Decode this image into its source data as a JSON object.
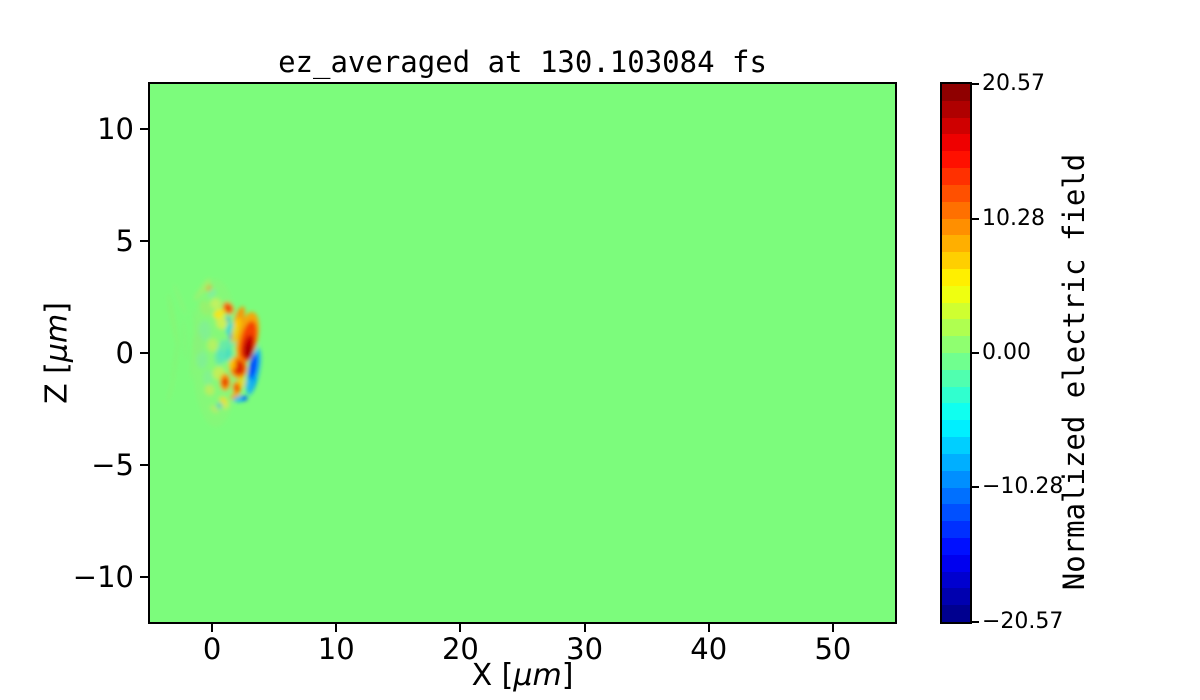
{
  "figure": {
    "background": "#ffffff"
  },
  "chart_data": {
    "type": "heatmap",
    "title": "ez_averaged at 130.103084 fs",
    "xlabel": {
      "pre": "X [",
      "italic": "μm",
      "post": "]"
    },
    "ylabel": {
      "pre": "Z [",
      "italic": "μm",
      "post": "]"
    },
    "xlim": [
      -5,
      55
    ],
    "ylim": [
      -12,
      12
    ],
    "x_ticks": [
      {
        "v": 0,
        "label": "0"
      },
      {
        "v": 10,
        "label": "10"
      },
      {
        "v": 20,
        "label": "20"
      },
      {
        "v": 30,
        "label": "30"
      },
      {
        "v": 40,
        "label": "40"
      },
      {
        "v": 50,
        "label": "50"
      }
    ],
    "y_ticks": [
      {
        "v": 10,
        "label": "10"
      },
      {
        "v": 5,
        "label": "5"
      },
      {
        "v": 0,
        "label": "0"
      },
      {
        "v": -5,
        "label": "−5"
      },
      {
        "v": -10,
        "label": "−10"
      }
    ],
    "grid": false,
    "background_value": 0.0,
    "background_color": "#7cfc7c",
    "colorbar": {
      "label": "Normalized electric field",
      "colormap": "jet",
      "n_bands": 32,
      "vmin": -20.57,
      "vmax": 20.57,
      "ticks": [
        {
          "v": 20.57,
          "label": "20.57"
        },
        {
          "v": 10.28,
          "label": "10.28"
        },
        {
          "v": 0.0,
          "label": "0.00"
        },
        {
          "v": -10.28,
          "label": "−10.28"
        },
        {
          "v": -20.57,
          "label": "−20.57"
        }
      ]
    },
    "features_note": "localized field structure near x≈0–4 μm, z≈−2.5–3 μm; format per feature: [x_um, z_um, rx_um, ry_um, rot_deg, color, opacity]",
    "features": [
      [
        0.3,
        0.0,
        1.9,
        3.3,
        0,
        "#97ef72",
        0.32
      ],
      [
        -0.6,
        1.0,
        0.5,
        0.45,
        0,
        "#7deba8",
        0.5
      ],
      [
        -0.8,
        -0.3,
        0.45,
        0.4,
        0,
        "#7cecaa",
        0.5
      ],
      [
        -0.35,
        -1.1,
        0.4,
        0.35,
        0,
        "#80eda6",
        0.45
      ],
      [
        -1.05,
        0.4,
        0.4,
        0.5,
        0,
        "#8bf07e",
        0.5
      ],
      [
        -0.5,
        2.0,
        0.45,
        0.35,
        -30,
        "#a8ee66",
        0.5
      ],
      [
        0.8,
        1.35,
        0.5,
        0.3,
        -20,
        "#d7f04e",
        0.85
      ],
      [
        0.05,
        0.35,
        0.45,
        0.3,
        0,
        "#c6ee58",
        0.7
      ],
      [
        0.55,
        -0.9,
        0.5,
        0.3,
        15,
        "#cfee50",
        0.8
      ],
      [
        -0.2,
        -1.65,
        0.4,
        0.25,
        -15,
        "#cdeb55",
        0.7
      ],
      [
        0.3,
        2.2,
        0.45,
        0.25,
        -40,
        "#d2ef58",
        0.75
      ],
      [
        1.0,
        -2.3,
        0.4,
        0.2,
        20,
        "#dfe84e",
        0.7
      ],
      [
        -0.55,
        3.0,
        0.7,
        0.14,
        -55,
        "#b4ef62",
        0.6
      ],
      [
        -1.1,
        2.6,
        0.55,
        0.12,
        -55,
        "#b0ee68",
        0.5
      ],
      [
        0.0,
        2.65,
        0.4,
        0.14,
        -50,
        "#7ce9c0",
        0.5
      ],
      [
        1.0,
        0.1,
        0.55,
        0.5,
        0,
        "#4fe0cc",
        0.55
      ],
      [
        0.6,
        -0.2,
        0.4,
        0.35,
        0,
        "#45ddd6",
        0.5
      ],
      [
        1.5,
        1.05,
        0.4,
        0.3,
        0,
        "#17d2e4",
        0.8
      ],
      [
        1.6,
        0.55,
        0.3,
        0.25,
        0,
        "#28d8de",
        0.6
      ],
      [
        2.7,
        -0.15,
        0.35,
        0.25,
        0,
        "#14c8ea",
        0.8
      ],
      [
        1.35,
        -0.05,
        0.3,
        0.3,
        0,
        "#2ad6d8",
        0.5
      ],
      [
        1.6,
        0.72,
        0.22,
        0.18,
        0,
        "#1e5aff",
        0.8
      ],
      [
        1.3,
        1.5,
        0.2,
        0.15,
        0,
        "#2f9cf0",
        0.6
      ],
      [
        -3.15,
        1.5,
        0.14,
        1.15,
        -10,
        "#93ef6d",
        0.55
      ],
      [
        -2.95,
        -0.3,
        0.12,
        0.95,
        8,
        "#90ee70",
        0.5
      ],
      [
        -3.3,
        -1.6,
        0.1,
        0.65,
        14,
        "#95ef72",
        0.45
      ],
      [
        -2.6,
        2.4,
        0.12,
        0.75,
        -22,
        "#98f075",
        0.45
      ],
      [
        -2.2,
        0.6,
        0.12,
        0.9,
        -4,
        "#8eee78",
        0.4
      ],
      [
        -1.55,
        -0.2,
        0.13,
        1.0,
        5,
        "#92ef74",
        0.45
      ],
      [
        -1.3,
        1.2,
        0.12,
        0.8,
        -8,
        "#90ee76",
        0.4
      ],
      [
        -0.25,
        2.9,
        0.3,
        0.12,
        -50,
        "#f0a23c",
        0.65
      ],
      [
        1.3,
        2.0,
        0.42,
        0.3,
        -35,
        "#ff8c1e",
        0.95
      ],
      [
        1.3,
        2.0,
        0.24,
        0.17,
        -35,
        "#e63205",
        1
      ],
      [
        0.55,
        1.75,
        0.5,
        0.2,
        -25,
        "#ffe414",
        0.9
      ],
      [
        2.2,
        1.6,
        0.35,
        0.5,
        20,
        "#ff9000",
        0.9
      ],
      [
        1.9,
        1.0,
        0.3,
        0.6,
        15,
        "#ffd700",
        0.8
      ],
      [
        2.85,
        0.7,
        0.85,
        1.15,
        12,
        "#ff9d00",
        0.92
      ],
      [
        2.9,
        0.5,
        0.62,
        0.95,
        12,
        "#f43b00",
        0.95
      ],
      [
        2.92,
        0.25,
        0.42,
        0.55,
        10,
        "#c40000",
        1
      ],
      [
        2.98,
        0.1,
        0.28,
        0.3,
        0,
        "#a30000",
        1
      ],
      [
        3.6,
        -0.1,
        0.2,
        0.45,
        10,
        "#30c8f0",
        0.5
      ],
      [
        2.1,
        -0.65,
        0.72,
        0.5,
        -10,
        "#ff9000",
        0.92
      ],
      [
        2.15,
        -0.65,
        0.48,
        0.34,
        -10,
        "#df2600",
        1
      ],
      [
        1.65,
        -0.5,
        0.3,
        0.25,
        0,
        "#ffc800",
        0.85
      ],
      [
        3.35,
        -0.85,
        0.45,
        1.05,
        12,
        "#18b4f0",
        0.9
      ],
      [
        3.32,
        -0.62,
        0.3,
        0.6,
        10,
        "#0046ff",
        0.95
      ],
      [
        3.28,
        -1.35,
        0.25,
        0.4,
        15,
        "#00a0f5",
        0.8
      ],
      [
        1.05,
        -1.3,
        0.42,
        0.38,
        0,
        "#ff9000",
        0.95
      ],
      [
        1.05,
        -1.3,
        0.24,
        0.2,
        0,
        "#e63c00",
        1
      ],
      [
        2.0,
        -1.55,
        0.36,
        0.3,
        0,
        "#ff9600",
        0.95
      ],
      [
        2.0,
        -1.55,
        0.2,
        0.16,
        0,
        "#eb4600",
        1
      ],
      [
        2.4,
        -1.3,
        0.3,
        0.25,
        0,
        "#ffd000",
        0.7
      ],
      [
        2.95,
        -1.45,
        0.3,
        0.3,
        0,
        "#28c0e8",
        0.7
      ],
      [
        1.85,
        -1.95,
        0.4,
        0.15,
        -10,
        "#ff9c00",
        0.8
      ],
      [
        2.3,
        -2.05,
        0.6,
        0.13,
        -8,
        "#00b4ff",
        0.9
      ],
      [
        2.6,
        -2.02,
        0.25,
        0.11,
        0,
        "#0050ff",
        0.9
      ],
      [
        0.9,
        -2.1,
        0.35,
        0.15,
        25,
        "#ffd820",
        0.7
      ],
      [
        0.2,
        -2.5,
        0.4,
        0.14,
        40,
        "#cce860",
        0.6
      ],
      [
        0.6,
        -2.35,
        0.25,
        0.15,
        20,
        "#40c0e0",
        0.6
      ]
    ]
  }
}
